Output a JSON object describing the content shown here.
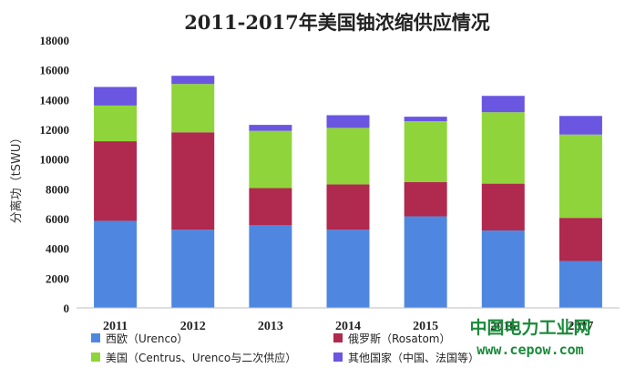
{
  "chart_data": {
    "type": "bar",
    "stacked": true,
    "title": "2011-2017年美国铀浓缩供应情况",
    "ylabel": "分离功（tSWU）",
    "xlabel": "",
    "ylim": [
      0,
      18000
    ],
    "yticks": [
      "0",
      "2000",
      "4000",
      "6000",
      "8000",
      "10000",
      "12000",
      "14000",
      "16000",
      "18000"
    ],
    "grid": false,
    "legend_position": "bottom",
    "categories": [
      "2011",
      "2012",
      "2013",
      "2014",
      "2015",
      "2016",
      "2017"
    ],
    "series": [
      {
        "name": "西欧（Urenco）",
        "color": "#4f87e0",
        "values": [
          5850,
          5250,
          5550,
          5250,
          6150,
          5200,
          3150
        ]
      },
      {
        "name": "俄罗斯（Rosatom）",
        "color": "#b0294e",
        "values": [
          5350,
          6550,
          2500,
          3050,
          2300,
          3150,
          2900
        ]
      },
      {
        "name": "美国（Centrus、Urenco与二次供应）",
        "color": "#8fd43a",
        "values": [
          2400,
          3250,
          3850,
          3800,
          4100,
          4800,
          5600
        ]
      },
      {
        "name": "其他国家（中国、法国等）",
        "color": "#6a56e0",
        "values": [
          1250,
          550,
          400,
          850,
          300,
          1100,
          1250
        ]
      }
    ]
  },
  "watermark": {
    "line1": "中国电力工业网",
    "line2": "www.cepow.com"
  }
}
